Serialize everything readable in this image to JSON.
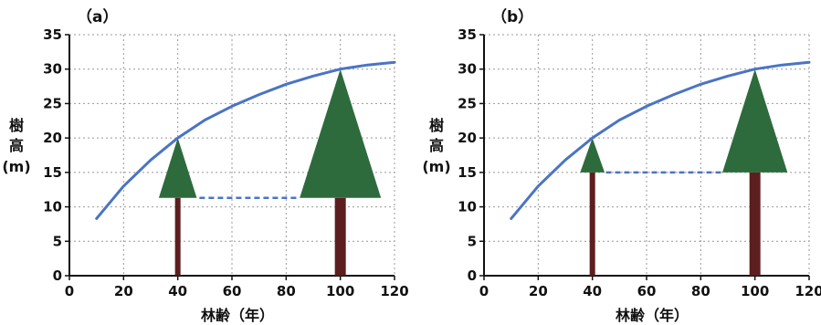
{
  "chart_data": [
    {
      "type": "line",
      "panel_label": "（a）",
      "xlabel": "林齢（年）",
      "ylabel": [
        "樹",
        "高",
        "(m)"
      ],
      "xlim": [
        0,
        120
      ],
      "ylim": [
        0,
        35
      ],
      "x_ticks": [
        0,
        20,
        40,
        60,
        80,
        100,
        120
      ],
      "y_ticks": [
        0,
        5,
        10,
        15,
        20,
        25,
        30,
        35
      ],
      "grid": true,
      "series": [
        {
          "x": [
            10,
            20,
            30,
            40,
            50,
            60,
            70,
            80,
            90,
            100,
            110,
            120
          ],
          "y": [
            8.3,
            13.0,
            16.8,
            20.0,
            22.6,
            24.6,
            26.3,
            27.8,
            29.0,
            30.0,
            30.6,
            31.0
          ]
        }
      ],
      "trees": [
        {
          "age": 40,
          "crown_top": 20,
          "crown_base": 11.3,
          "crown_half_width_years": 7
        },
        {
          "age": 100,
          "crown_top": 30,
          "crown_base": 11.3,
          "crown_half_width_years": 15
        }
      ],
      "crown_base_line": {
        "y": 11.3,
        "x_from": 48,
        "x_to": 85
      },
      "colors": {
        "curve": "#4a74c4",
        "crown": "#2d6b3c",
        "trunk": "#5c1e1e",
        "dash": "#4a74c4",
        "grid": "#999999"
      }
    },
    {
      "type": "line",
      "panel_label": "（b）",
      "xlabel": "林齢（年）",
      "ylabel": [
        "樹",
        "高",
        "(m)"
      ],
      "xlim": [
        0,
        120
      ],
      "ylim": [
        0,
        35
      ],
      "x_ticks": [
        0,
        20,
        40,
        60,
        80,
        100,
        120
      ],
      "y_ticks": [
        0,
        5,
        10,
        15,
        20,
        25,
        30,
        35
      ],
      "grid": true,
      "series": [
        {
          "x": [
            10,
            20,
            30,
            40,
            50,
            60,
            70,
            80,
            90,
            100,
            110,
            120
          ],
          "y": [
            8.3,
            13.0,
            16.8,
            20.0,
            22.6,
            24.6,
            26.3,
            27.8,
            29.0,
            30.0,
            30.6,
            31.0
          ]
        }
      ],
      "trees": [
        {
          "age": 40,
          "crown_top": 20,
          "crown_base": 15,
          "crown_half_width_years": 4.5
        },
        {
          "age": 100,
          "crown_top": 30,
          "crown_base": 15,
          "crown_half_width_years": 12
        }
      ],
      "crown_base_line": {
        "y": 15,
        "x_from": 45,
        "x_to": 88
      },
      "colors": {
        "curve": "#4a74c4",
        "crown": "#2d6b3c",
        "trunk": "#5c1e1e",
        "dash": "#4a74c4",
        "grid": "#999999"
      }
    }
  ]
}
